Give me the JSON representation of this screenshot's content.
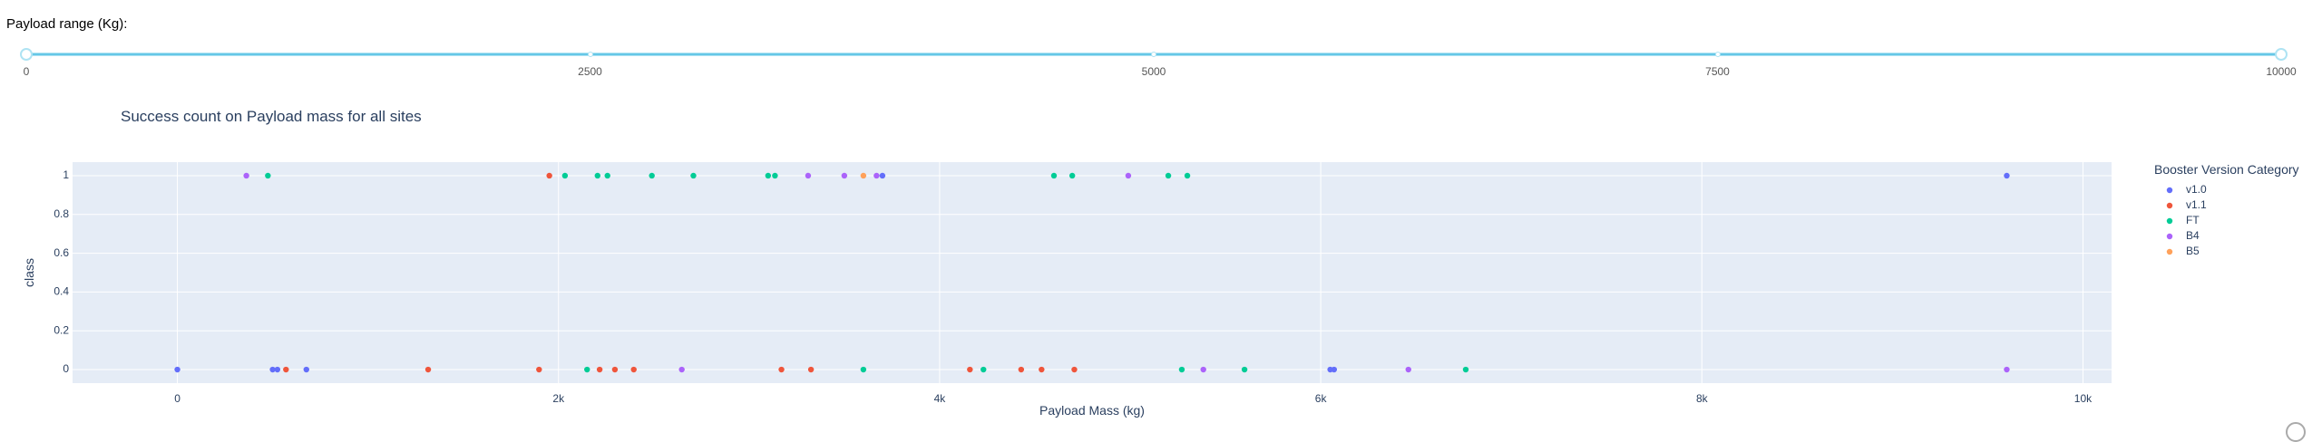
{
  "slider": {
    "title": "Payload range (Kg):",
    "min": 0,
    "max": 10000,
    "value": [
      0,
      10000
    ],
    "marks": [
      "0",
      "2500",
      "5000",
      "7500",
      "10000"
    ],
    "mark_values": [
      0,
      2500,
      5000,
      7500,
      10000
    ]
  },
  "chart_data": {
    "type": "scatter",
    "title": "Success count on Payload mass for all sites",
    "xlabel": "Payload Mass (kg)",
    "ylabel": "class",
    "xlim": [
      -550,
      10150
    ],
    "ylim": [
      -0.07,
      1.07
    ],
    "x_ticks": [
      0,
      2000,
      4000,
      6000,
      8000,
      10000
    ],
    "x_tick_labels": [
      "0",
      "2k",
      "4k",
      "6k",
      "8k",
      "10k"
    ],
    "y_ticks": [
      0,
      0.2,
      0.4,
      0.6,
      0.8,
      1
    ],
    "y_tick_labels": [
      "0",
      "0.2",
      "0.4",
      "0.6",
      "0.8",
      "1"
    ],
    "grid": true,
    "legend_title": "Booster Version Category",
    "legend_position": "right",
    "colors": {
      "v1.0": "#636efa",
      "v1.1": "#ef553b",
      "FT": "#00cc96",
      "B4": "#ab63fa",
      "B5": "#ffa15a",
      "plot_bg": "#e5ecf6"
    },
    "series": [
      {
        "name": "v1.0",
        "points": [
          [
            0,
            0
          ],
          [
            525,
            0
          ],
          [
            500,
            0
          ],
          [
            677,
            0
          ],
          [
            3700,
            1
          ],
          [
            6070,
            0
          ],
          [
            6050,
            0
          ],
          [
            9600,
            1
          ]
        ]
      },
      {
        "name": "v1.1",
        "points": [
          [
            570,
            0
          ],
          [
            1316,
            0
          ],
          [
            1898,
            0
          ],
          [
            1952,
            1
          ],
          [
            2216,
            0
          ],
          [
            2296,
            0
          ],
          [
            2395,
            0
          ],
          [
            3170,
            0
          ],
          [
            3325,
            0
          ],
          [
            4159,
            0
          ],
          [
            4428,
            0
          ],
          [
            4535,
            0
          ],
          [
            4707,
            0
          ]
        ]
      },
      {
        "name": "FT",
        "points": [
          [
            475,
            1
          ],
          [
            2034,
            1
          ],
          [
            2150,
            0
          ],
          [
            2205,
            1
          ],
          [
            2257,
            1
          ],
          [
            2490,
            1
          ],
          [
            2708,
            1
          ],
          [
            3100,
            1
          ],
          [
            3136,
            1
          ],
          [
            3600,
            0
          ],
          [
            4230,
            0
          ],
          [
            4600,
            1
          ],
          [
            4696,
            1
          ],
          [
            5200,
            1
          ],
          [
            5300,
            1
          ],
          [
            5271,
            0
          ],
          [
            5600,
            0
          ],
          [
            6761,
            0
          ]
        ]
      },
      {
        "name": "B4",
        "points": [
          [
            362,
            1
          ],
          [
            2647,
            0
          ],
          [
            3310,
            1
          ],
          [
            3500,
            1
          ],
          [
            3669,
            1
          ],
          [
            4990,
            1
          ],
          [
            5384,
            0
          ],
          [
            6460,
            0
          ],
          [
            9600,
            0
          ]
        ]
      },
      {
        "name": "B5",
        "points": [
          [
            3600,
            1
          ]
        ]
      }
    ]
  }
}
